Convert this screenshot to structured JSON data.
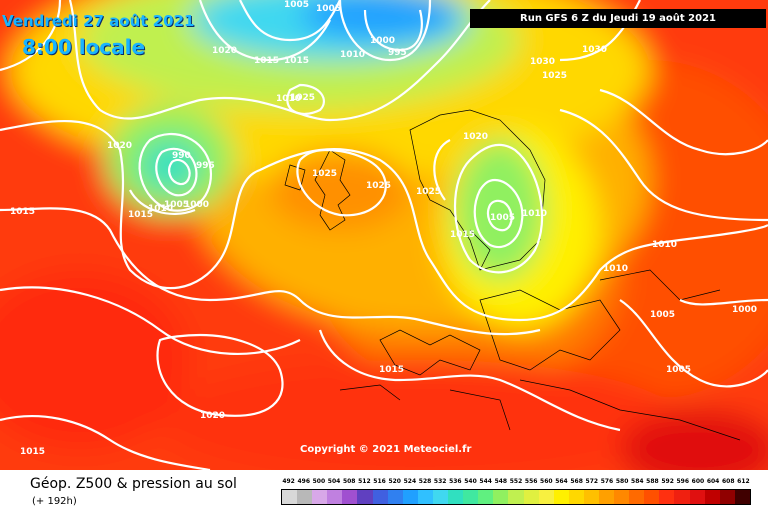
{
  "header": {
    "date": "Vendredi 27 août 2021",
    "time": "8:00 locale",
    "run": "Run GFS 6 Z du Jeudi 19 août 2021"
  },
  "copyright": "Copyright © 2021 Meteociel.fr",
  "footer": {
    "title": "Géop. Z500 & pression au sol",
    "subtitle": "(+ 192h)"
  },
  "pressure_labels": [
    "1005",
    "1005",
    "1020",
    "1015",
    "1015",
    "1000",
    "995",
    "1010",
    "1030",
    "1025",
    "1030",
    "1025",
    "1010",
    "1020",
    "990",
    "995",
    "1015",
    "1010",
    "1005",
    "1000",
    "1025",
    "1025",
    "1025",
    "1020",
    "1005",
    "1010",
    "1015",
    "1010",
    "1010",
    "1015",
    "1000",
    "1005",
    "1005",
    "1015",
    "1020",
    "1015"
  ],
  "colorscale": {
    "labels": [
      "492",
      "496",
      "500",
      "504",
      "508",
      "512",
      "516",
      "520",
      "524",
      "528",
      "532",
      "536",
      "540",
      "544",
      "548",
      "552",
      "556",
      "560",
      "564",
      "568",
      "572",
      "576",
      "580",
      "584",
      "588",
      "592",
      "596",
      "600",
      "604",
      "608",
      "612"
    ],
    "colors": [
      "#d8d8d8",
      "#b8b8b8",
      "#d8a8e8",
      "#c080e0",
      "#a050d0",
      "#6040c0",
      "#4060e0",
      "#3080f0",
      "#20a0ff",
      "#30c0ff",
      "#40d8f0",
      "#30e0c0",
      "#40e8a0",
      "#60f080",
      "#90f060",
      "#c0f050",
      "#e0f040",
      "#f8f040",
      "#fff000",
      "#ffd800",
      "#ffc000",
      "#ffa000",
      "#ff8800",
      "#ff6a00",
      "#ff5000",
      "#ff3010",
      "#f02010",
      "#e01010",
      "#c00000",
      "#900000",
      "#400000"
    ]
  }
}
